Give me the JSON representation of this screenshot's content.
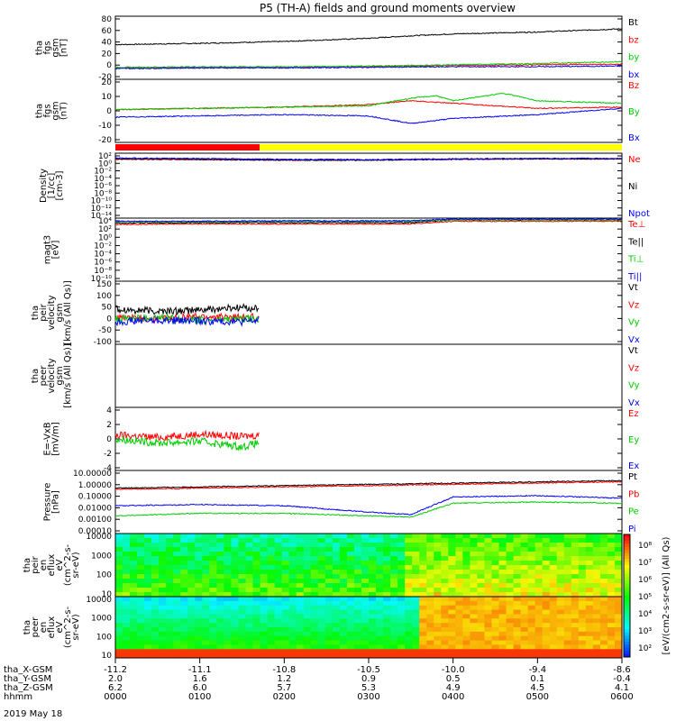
{
  "title": "P5 (TH-A) fields and ground moments overview",
  "date_label": "2019 May 18",
  "x_axis_rows": [
    {
      "label": "tha_X-GSM",
      "values": [
        "-11.2",
        "-11.1",
        "-10.8",
        "-10.5",
        "-10.0",
        "-9.4",
        "-8.6"
      ]
    },
    {
      "label": "tha_Y-GSM",
      "values": [
        "2.0",
        "1.6",
        "1.2",
        "0.9",
        "0.5",
        "0.1",
        "-0.4"
      ]
    },
    {
      "label": "tha_Z-GSM",
      "values": [
        "6.2",
        "6.0",
        "5.7",
        "5.3",
        "4.9",
        "4.5",
        "4.1"
      ]
    },
    {
      "label": "hhmm",
      "values": [
        "0000",
        "0100",
        "0200",
        "0300",
        "0400",
        "0500",
        "0600"
      ]
    }
  ],
  "colorbar_label": "[eV/(cm2-s-sr-eV)] (All Qs)",
  "colorbar_ticks": [
    "10⁸",
    "10⁷",
    "10⁶",
    "10⁵",
    "10⁴",
    "10³",
    "10²"
  ],
  "chart_data": [
    {
      "type": "line",
      "ylabel_lines": [
        "tha",
        "fgs",
        "gsm",
        "[nT]"
      ],
      "yticks": [
        "80",
        "60",
        "40",
        "20",
        "0",
        "-20"
      ],
      "ylim": [
        -20,
        80
      ],
      "series": [
        {
          "name": "Bt",
          "color": "#000000",
          "x": [
            0,
            1,
            2,
            3,
            3.5,
            4,
            5,
            6
          ],
          "y": [
            35,
            37,
            40,
            45,
            49,
            52,
            55,
            60
          ]
        },
        {
          "name": "bz",
          "color": "#ff0000",
          "x": [
            0,
            1,
            2,
            3,
            4,
            5,
            6
          ],
          "y": [
            -2,
            -1,
            -1,
            0,
            2,
            3,
            4
          ]
        },
        {
          "name": "by",
          "color": "#00cc00",
          "x": [
            0,
            1,
            2,
            3,
            4,
            5,
            6
          ],
          "y": [
            -1,
            0,
            0,
            1,
            3,
            5,
            8
          ]
        },
        {
          "name": "bx",
          "color": "#0000ff",
          "x": [
            0,
            1,
            2,
            3,
            4,
            5,
            6
          ],
          "y": [
            -3,
            -2,
            -2,
            -1,
            0,
            0,
            1
          ]
        }
      ]
    },
    {
      "type": "line",
      "ylabel_lines": [
        "tha",
        "fgs",
        "gsm",
        "(nT)"
      ],
      "yticks": [
        "20",
        "10",
        "0",
        "-10",
        "-20"
      ],
      "ylim": [
        -25,
        25
      ],
      "series": [
        {
          "name": "Bz",
          "color": "#ff0000",
          "x": [
            0,
            1,
            2,
            3,
            3.5,
            4,
            5,
            6
          ],
          "y": [
            1,
            2,
            3,
            5,
            8,
            6,
            2,
            3
          ]
        },
        {
          "name": "By",
          "color": "#00cc00",
          "x": [
            0,
            1,
            2,
            3,
            3.5,
            3.8,
            4,
            4.6,
            5,
            6
          ],
          "y": [
            1,
            2,
            3,
            4,
            10,
            12,
            8,
            14,
            8,
            6
          ]
        },
        {
          "name": "Bx",
          "color": "#0000ff",
          "x": [
            0,
            1,
            2,
            3,
            3.5,
            4,
            5,
            6
          ],
          "y": [
            -5,
            -4,
            -3,
            -4,
            -10,
            -6,
            -3,
            2
          ]
        }
      ]
    },
    {
      "type": "line",
      "ylabel_lines": [
        "Density",
        "[1/cc]",
        "[cm-3]"
      ],
      "yticks": [
        "10²",
        "10⁰",
        "10⁻²",
        "10⁻⁴",
        "10⁻⁶",
        "10⁻⁸",
        "10⁻¹⁰",
        "10⁻¹²",
        "10⁻¹⁴"
      ],
      "log": true,
      "ylim": [
        -14,
        2
      ],
      "series": [
        {
          "name": "Ne",
          "color": "#ff0000",
          "x": [
            0,
            1,
            2,
            3,
            4,
            5,
            6
          ],
          "y": [
            0.5,
            0.4,
            0.3,
            0.3,
            0.5,
            0.6,
            0.6
          ]
        },
        {
          "name": "Ni",
          "color": "#000000",
          "x": [
            0,
            1,
            2,
            3,
            4,
            5,
            6
          ],
          "y": [
            0.6,
            0.5,
            0.3,
            0.3,
            0.5,
            0.6,
            0.6
          ]
        },
        {
          "name": "Npot",
          "color": "#0000ff",
          "x": [
            0,
            1,
            2,
            3,
            4,
            5,
            6
          ],
          "y": [
            0.8,
            0.7,
            0.5,
            0.4,
            0.6,
            0.7,
            0.7
          ]
        }
      ]
    },
    {
      "type": "line",
      "ylabel_lines": [
        "magt3",
        "[eV]"
      ],
      "yticks": [
        "10⁴",
        "10²",
        "10⁰",
        "10⁻²",
        "10⁻⁴",
        "10⁻⁶",
        "10⁻⁸",
        "10⁻¹⁰"
      ],
      "log": true,
      "ylim": [
        -10,
        4
      ],
      "series": [
        {
          "name": "Te⊥",
          "color": "#ff0000",
          "x": [
            0,
            1,
            2,
            3,
            3.5,
            4,
            5,
            6
          ],
          "y": [
            2.6,
            2.7,
            2.7,
            2.7,
            2.7,
            3.3,
            3.3,
            3.3
          ]
        },
        {
          "name": "Te||",
          "color": "#000000",
          "x": [
            0,
            1,
            2,
            3,
            3.5,
            4,
            5,
            6
          ],
          "y": [
            2.9,
            3.0,
            3.0,
            3.0,
            3.0,
            3.6,
            3.6,
            3.6
          ]
        },
        {
          "name": "Ti⊥",
          "color": "#00cc00",
          "x": [
            0,
            1,
            2,
            3,
            3.5,
            4,
            5,
            6
          ],
          "y": [
            3.2,
            3.2,
            3.3,
            3.3,
            3.3,
            3.6,
            3.6,
            3.6
          ]
        },
        {
          "name": "Ti||",
          "color": "#0000ff",
          "x": [
            0,
            1,
            2,
            3,
            3.5,
            4,
            5,
            6
          ],
          "y": [
            3.3,
            3.3,
            3.4,
            3.4,
            3.4,
            3.8,
            3.8,
            3.8
          ]
        }
      ]
    },
    {
      "type": "line",
      "ylabel_lines": [
        "tha",
        "peir",
        "velocity",
        "gsm",
        "[km/s (All Qs)]"
      ],
      "yticks": [
        "150",
        "100",
        "50",
        "0",
        "-50",
        "-100"
      ],
      "ylim": [
        -100,
        150
      ],
      "series": [
        {
          "name": "Vt",
          "color": "#000000",
          "x": [
            0,
            0.5,
            1,
            1.5,
            1.7
          ],
          "y": [
            40,
            30,
            35,
            45,
            40
          ]
        },
        {
          "name": "Vz",
          "color": "#ff0000",
          "x": [
            0,
            0.5,
            1,
            1.5,
            1.7
          ],
          "y": [
            5,
            0,
            10,
            5,
            8
          ]
        },
        {
          "name": "Vy",
          "color": "#00cc00",
          "x": [
            0,
            0.5,
            1,
            1.5,
            1.7
          ],
          "y": [
            0,
            5,
            -5,
            0,
            -3
          ]
        },
        {
          "name": "Vx",
          "color": "#0000ff",
          "x": [
            0,
            0.5,
            1,
            1.5,
            1.7
          ],
          "y": [
            -10,
            -5,
            -8,
            -10,
            -5
          ]
        }
      ]
    },
    {
      "type": "line",
      "ylabel_lines": [
        "tha",
        "peer",
        "velocity",
        "gsm",
        "[km/s (All Qs)]"
      ],
      "yticks": [],
      "ylim": [
        -100,
        150
      ],
      "series": [
        {
          "name": "Vt",
          "color": "#000000",
          "x": [],
          "y": []
        },
        {
          "name": "Vz",
          "color": "#ff0000",
          "x": [],
          "y": []
        },
        {
          "name": "Vy",
          "color": "#00cc00",
          "x": [],
          "y": []
        },
        {
          "name": "Vx",
          "color": "#0000ff",
          "x": [],
          "y": []
        }
      ]
    },
    {
      "type": "line",
      "ylabel_lines": [
        "E=-VxB",
        "[mV/m]"
      ],
      "yticks": [
        "4",
        "2",
        "0",
        "-2",
        "-4"
      ],
      "ylim": [
        -4,
        4
      ],
      "series": [
        {
          "name": "Ez",
          "color": "#ff0000",
          "x": [
            0,
            0.5,
            1,
            1.5,
            1.7
          ],
          "y": [
            0.5,
            0.2,
            0.6,
            0.3,
            0.5
          ]
        },
        {
          "name": "Ey",
          "color": "#00cc00",
          "x": [
            0,
            0.5,
            1,
            1.5,
            1.7
          ],
          "y": [
            0,
            -0.5,
            -0.3,
            -1,
            -0.5
          ]
        },
        {
          "name": "Ex",
          "color": "#0000ff",
          "x": [],
          "y": []
        }
      ]
    },
    {
      "type": "line",
      "ylabel_lines": [
        "Pressure",
        "[nPa]"
      ],
      "yticks": [
        "10.00000",
        "1.00000",
        "0.10000",
        "0.01000",
        "0.00100",
        "0.00010"
      ],
      "log": true,
      "ylim": [
        -4,
        1
      ],
      "series": [
        {
          "name": "Pt",
          "color": "#000000",
          "x": [
            0,
            2,
            4,
            6
          ],
          "y": [
            -0.4,
            -0.2,
            0.0,
            0.2
          ]
        },
        {
          "name": "Pb",
          "color": "#ff0000",
          "x": [
            0,
            2,
            4,
            6
          ],
          "y": [
            -0.5,
            -0.3,
            -0.1,
            0.1
          ]
        },
        {
          "name": "Pe",
          "color": "#00cc00",
          "x": [
            0,
            1,
            2,
            3,
            3.5,
            4,
            5,
            6
          ],
          "y": [
            -2.6,
            -2.4,
            -2.4,
            -2.6,
            -2.7,
            -1.6,
            -1.5,
            -1.6
          ]
        },
        {
          "name": "Pi",
          "color": "#0000ff",
          "x": [
            0,
            1,
            2,
            3,
            3.5,
            4,
            5,
            6
          ],
          "y": [
            -1.8,
            -1.7,
            -1.8,
            -2.3,
            -2.5,
            -1.1,
            -1.0,
            -1.2
          ]
        }
      ]
    },
    {
      "type": "heatmap",
      "ylabel_lines": [
        "tha",
        "peir",
        "en",
        "eflux",
        "eV",
        "(cm^2-s-",
        "sr-eV)"
      ],
      "yticks": [
        "10000",
        "1000",
        "100",
        "10"
      ]
    },
    {
      "type": "heatmap",
      "ylabel_lines": [
        "tha",
        "peer",
        "en",
        "eflux",
        "eV",
        "(cm^2-s-",
        "sr-eV)"
      ],
      "yticks": [
        "10000",
        "1000",
        "100",
        "10"
      ]
    }
  ]
}
